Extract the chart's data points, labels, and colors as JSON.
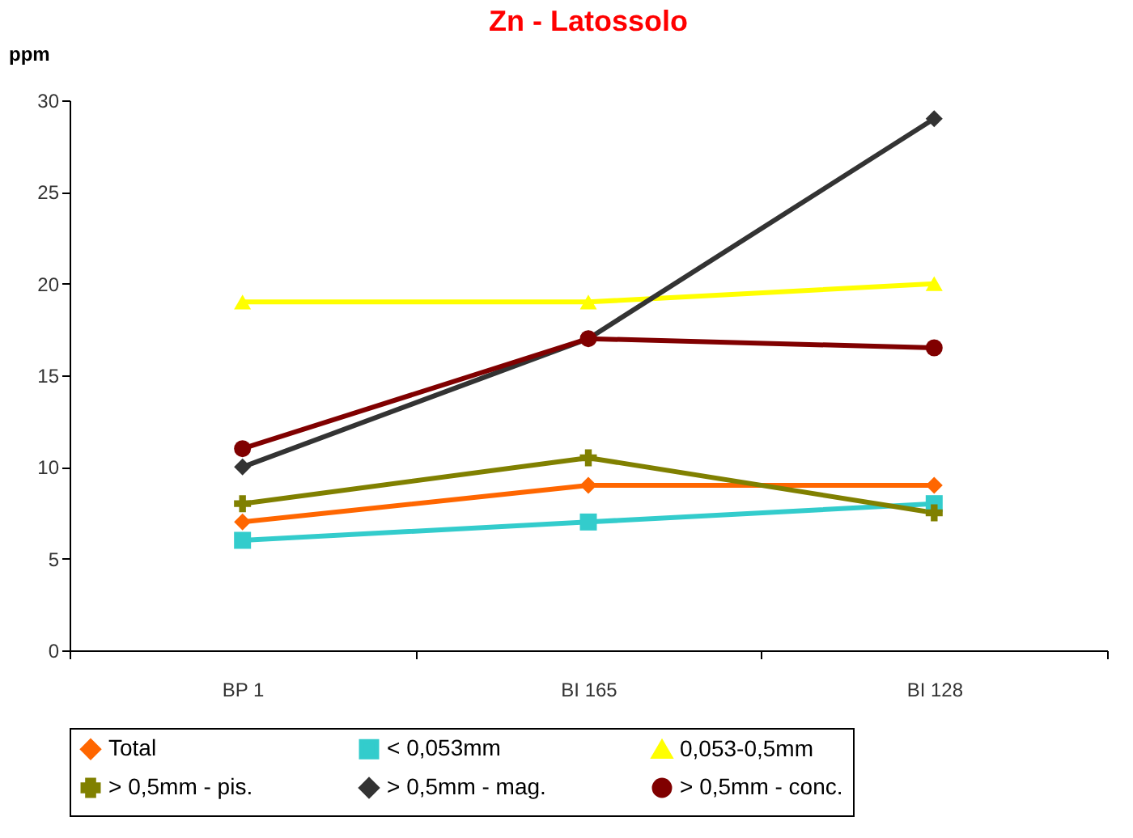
{
  "chart_data": {
    "type": "line",
    "title": "Zn - Latossolo",
    "ylabel": "ppm",
    "categories": [
      "BP 1",
      "BI 165",
      "BI 128"
    ],
    "series": [
      {
        "name": "Total",
        "color": "#ff6600",
        "marker": "diamond",
        "values": [
          7,
          9,
          9
        ]
      },
      {
        "name": "< 0,053mm",
        "color": "#33cccc",
        "marker": "square",
        "values": [
          6,
          7,
          8
        ]
      },
      {
        "name": "0,053-0,5mm",
        "color": "#ffff00",
        "marker": "triangle",
        "values": [
          19,
          19,
          20
        ]
      },
      {
        "name": "> 0,5mm - pis.",
        "color": "#808000",
        "marker": "cross",
        "values": [
          8,
          10.5,
          7.5
        ]
      },
      {
        "name": "> 0,5mm - mag.",
        "color": "#333333",
        "marker": "diamond",
        "values": [
          10,
          17,
          29
        ]
      },
      {
        "name": "> 0,5mm - conc.",
        "color": "#800000",
        "marker": "circle",
        "values": [
          11,
          17,
          16.5
        ]
      }
    ],
    "ylim": [
      0,
      30
    ],
    "yticks": [
      0,
      5,
      10,
      15,
      20,
      25,
      30
    ],
    "grid": false,
    "legend": "bottom"
  }
}
